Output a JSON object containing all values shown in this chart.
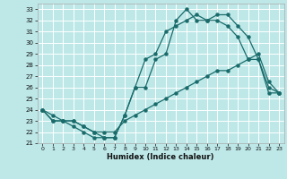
{
  "xlabel": "Humidex (Indice chaleur)",
  "xlim": [
    -0.5,
    23.5
  ],
  "ylim": [
    21,
    33.5
  ],
  "yticks": [
    21,
    22,
    23,
    24,
    25,
    26,
    27,
    28,
    29,
    30,
    31,
    32,
    33
  ],
  "xticks": [
    0,
    1,
    2,
    3,
    4,
    5,
    6,
    7,
    8,
    9,
    10,
    11,
    12,
    13,
    14,
    15,
    16,
    17,
    18,
    19,
    20,
    21,
    22,
    23
  ],
  "background_color": "#bee8e8",
  "grid_color": "#ffffff",
  "line_color": "#1a6b6b",
  "line1_x": [
    0,
    1,
    2,
    3,
    4,
    5,
    6,
    7,
    8,
    9,
    10,
    11,
    12,
    13,
    14,
    15,
    16,
    17,
    18,
    19,
    20,
    21,
    22,
    23
  ],
  "line1_y": [
    24,
    23,
    23,
    22.5,
    22,
    21.5,
    21.5,
    21.5,
    23.5,
    26,
    28.5,
    29,
    31,
    31.5,
    32,
    32.5,
    32,
    32.5,
    32.5,
    31.5,
    30.5,
    28.5,
    26,
    25.5
  ],
  "line2_x": [
    0,
    1,
    2,
    3,
    4,
    5,
    6,
    7,
    8,
    9,
    10,
    11,
    12,
    13,
    14,
    15,
    16,
    17,
    18,
    19,
    20,
    21,
    22,
    23
  ],
  "line2_y": [
    24,
    23,
    23,
    23,
    22.5,
    22,
    21.5,
    21.5,
    23.5,
    26,
    26,
    28.5,
    29,
    32,
    33,
    32,
    32,
    32,
    31.5,
    30.5,
    28.5,
    29,
    26.5,
    25.5
  ],
  "line3_x": [
    0,
    1,
    2,
    3,
    4,
    5,
    6,
    7,
    8,
    9,
    10,
    11,
    12,
    13,
    14,
    15,
    16,
    17,
    18,
    19,
    20,
    21,
    22,
    23
  ],
  "line3_y": [
    24,
    23.5,
    23,
    23,
    22.5,
    22,
    22,
    22,
    23,
    23.5,
    24,
    24.5,
    25,
    25.5,
    26,
    26.5,
    27,
    27.5,
    27.5,
    28,
    28.5,
    28.5,
    25.5,
    25.5
  ]
}
